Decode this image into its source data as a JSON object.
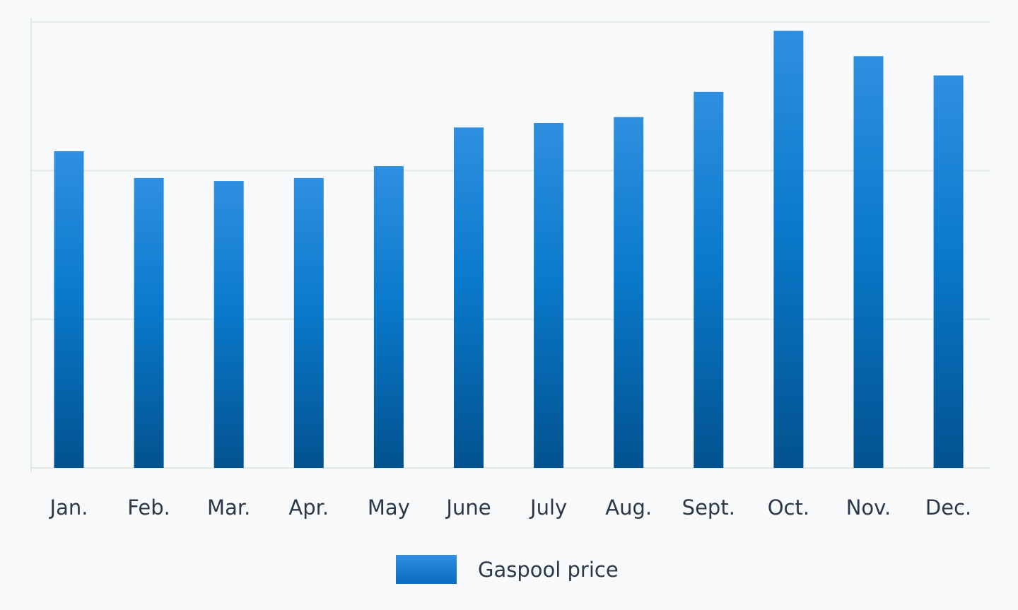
{
  "chart_data": {
    "type": "bar",
    "categories": [
      "Jan.",
      "Feb.",
      "Mar.",
      "Apr.",
      "May",
      "June",
      "July",
      "Aug.",
      "Sept.",
      "Oct.",
      "Nov.",
      "Dec."
    ],
    "series": [
      {
        "name": "Gaspool price",
        "values": [
          2.13,
          1.95,
          1.93,
          1.95,
          2.03,
          2.29,
          2.32,
          2.36,
          2.53,
          2.94,
          2.77,
          2.64
        ]
      }
    ],
    "ylim": [
      0,
      3
    ],
    "gridlines": [
      0,
      1,
      2,
      3
    ],
    "grid": true,
    "legend": "bottom-center",
    "colors": {
      "bar_top": "#2f8fe0",
      "bar_bottom": "#02528f",
      "legend_top": "#2f8fe0",
      "legend_bottom": "#0a6cc0",
      "grid": "#e2e8e2",
      "text": "#2b3847",
      "background": "#f7f9fa"
    }
  }
}
